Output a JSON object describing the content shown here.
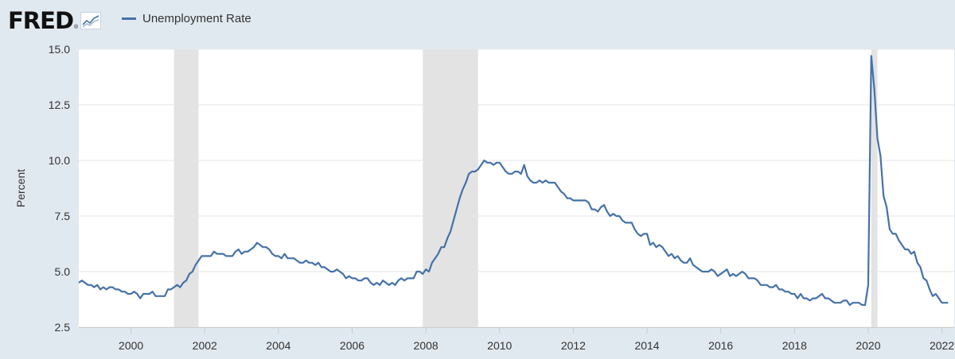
{
  "header": {
    "logo_text": "FRED",
    "logo_mark": "®",
    "graph_icon": "line-graph-icon",
    "series_legend": "Unemployment Rate"
  },
  "colors": {
    "background": "#e1e9f0",
    "plot_background": "#ffffff",
    "series": "#4572a7",
    "recession": "#e3e3e3",
    "grid": "#e6e6e6"
  },
  "chart_data": {
    "type": "line",
    "title": "",
    "xlabel": "",
    "ylabel": "Percent",
    "ylim": [
      2.5,
      15.0
    ],
    "yticks": [
      2.5,
      5.0,
      7.5,
      10.0,
      12.5,
      15.0
    ],
    "ytick_labels": [
      "2.5",
      "5.0",
      "7.5",
      "10.0",
      "12.5",
      "15.0"
    ],
    "xlim": [
      "1998-08",
      "2022-05"
    ],
    "xticks": [
      "2000",
      "2002",
      "2004",
      "2006",
      "2008",
      "2010",
      "2012",
      "2014",
      "2016",
      "2018",
      "2020",
      "2022"
    ],
    "grid": "horizontal",
    "legend": "top-left",
    "recessions": [
      {
        "start": "2001-03",
        "end": "2001-11"
      },
      {
        "start": "2007-12",
        "end": "2009-06"
      },
      {
        "start": "2020-02",
        "end": "2020-04"
      }
    ],
    "series": [
      {
        "name": "Unemployment Rate",
        "start": "1998-08",
        "frequency": "monthly",
        "values": [
          4.5,
          4.6,
          4.5,
          4.4,
          4.4,
          4.3,
          4.4,
          4.2,
          4.3,
          4.2,
          4.3,
          4.3,
          4.2,
          4.2,
          4.1,
          4.1,
          4.0,
          4.0,
          4.1,
          4.0,
          3.8,
          4.0,
          4.0,
          4.0,
          4.1,
          3.9,
          3.9,
          3.9,
          3.9,
          4.2,
          4.2,
          4.3,
          4.4,
          4.3,
          4.5,
          4.6,
          4.9,
          5.0,
          5.3,
          5.5,
          5.7,
          5.7,
          5.7,
          5.7,
          5.9,
          5.8,
          5.8,
          5.8,
          5.7,
          5.7,
          5.7,
          5.9,
          6.0,
          5.8,
          5.9,
          5.9,
          6.0,
          6.1,
          6.3,
          6.2,
          6.1,
          6.1,
          6.0,
          5.8,
          5.7,
          5.7,
          5.6,
          5.8,
          5.6,
          5.6,
          5.6,
          5.5,
          5.4,
          5.4,
          5.5,
          5.4,
          5.4,
          5.3,
          5.4,
          5.2,
          5.2,
          5.1,
          5.0,
          5.0,
          5.1,
          5.0,
          4.9,
          4.7,
          4.8,
          4.7,
          4.7,
          4.6,
          4.6,
          4.7,
          4.7,
          4.5,
          4.4,
          4.5,
          4.4,
          4.6,
          4.5,
          4.4,
          4.5,
          4.4,
          4.6,
          4.7,
          4.6,
          4.7,
          4.7,
          4.7,
          5.0,
          5.0,
          4.9,
          5.1,
          5.0,
          5.4,
          5.6,
          5.8,
          6.1,
          6.1,
          6.5,
          6.8,
          7.3,
          7.8,
          8.3,
          8.7,
          9.0,
          9.4,
          9.5,
          9.5,
          9.6,
          9.8,
          10.0,
          9.9,
          9.9,
          9.8,
          9.9,
          9.9,
          9.7,
          9.5,
          9.4,
          9.4,
          9.5,
          9.5,
          9.4,
          9.8,
          9.3,
          9.1,
          9.0,
          9.0,
          9.1,
          9.0,
          9.1,
          9.0,
          9.0,
          9.0,
          8.8,
          8.6,
          8.5,
          8.3,
          8.3,
          8.2,
          8.2,
          8.2,
          8.2,
          8.2,
          8.1,
          7.8,
          7.8,
          7.7,
          7.9,
          8.0,
          7.7,
          7.5,
          7.6,
          7.5,
          7.5,
          7.3,
          7.2,
          7.2,
          7.2,
          6.9,
          6.7,
          6.6,
          6.7,
          6.7,
          6.2,
          6.3,
          6.1,
          6.2,
          6.1,
          5.9,
          5.7,
          5.8,
          5.6,
          5.7,
          5.5,
          5.4,
          5.4,
          5.6,
          5.3,
          5.2,
          5.1,
          5.0,
          5.0,
          5.0,
          5.1,
          5.0,
          4.8,
          4.9,
          5.0,
          5.1,
          4.8,
          4.9,
          4.8,
          4.9,
          5.0,
          4.9,
          4.7,
          4.7,
          4.7,
          4.6,
          4.4,
          4.4,
          4.4,
          4.3,
          4.3,
          4.4,
          4.2,
          4.2,
          4.1,
          4.1,
          4.0,
          4.0,
          3.8,
          4.0,
          3.8,
          3.8,
          3.7,
          3.8,
          3.8,
          3.9,
          4.0,
          3.8,
          3.8,
          3.7,
          3.6,
          3.6,
          3.6,
          3.7,
          3.7,
          3.5,
          3.6,
          3.6,
          3.6,
          3.5,
          3.5,
          4.4,
          14.7,
          13.2,
          11.0,
          10.2,
          8.4,
          7.9,
          6.9,
          6.7,
          6.7,
          6.4,
          6.2,
          6.0,
          6.0,
          5.8,
          5.9,
          5.4,
          5.2,
          4.7,
          4.6,
          4.2,
          3.9,
          4.0,
          3.8,
          3.6,
          3.6,
          3.6
        ]
      }
    ]
  }
}
